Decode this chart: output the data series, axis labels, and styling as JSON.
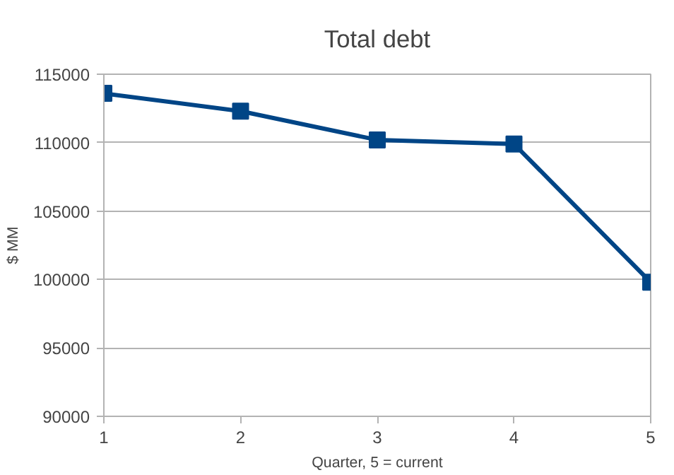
{
  "chart_data": {
    "type": "line",
    "title": "Total debt",
    "xlabel": "Quarter, 5 = current",
    "ylabel": "$ MM",
    "x": [
      1,
      2,
      3,
      4,
      5
    ],
    "series": [
      {
        "color": "#004586",
        "values": [
          113600,
          112300,
          110200,
          109900,
          99800
        ]
      }
    ],
    "xlim": [
      1,
      5
    ],
    "xticks": [
      1,
      2,
      3,
      4,
      5
    ],
    "ylim": [
      90000,
      115000
    ],
    "yticks": [
      90000,
      95000,
      100000,
      105000,
      110000,
      115000
    ],
    "grid": "y",
    "marker": "square",
    "line_style": "solid"
  }
}
